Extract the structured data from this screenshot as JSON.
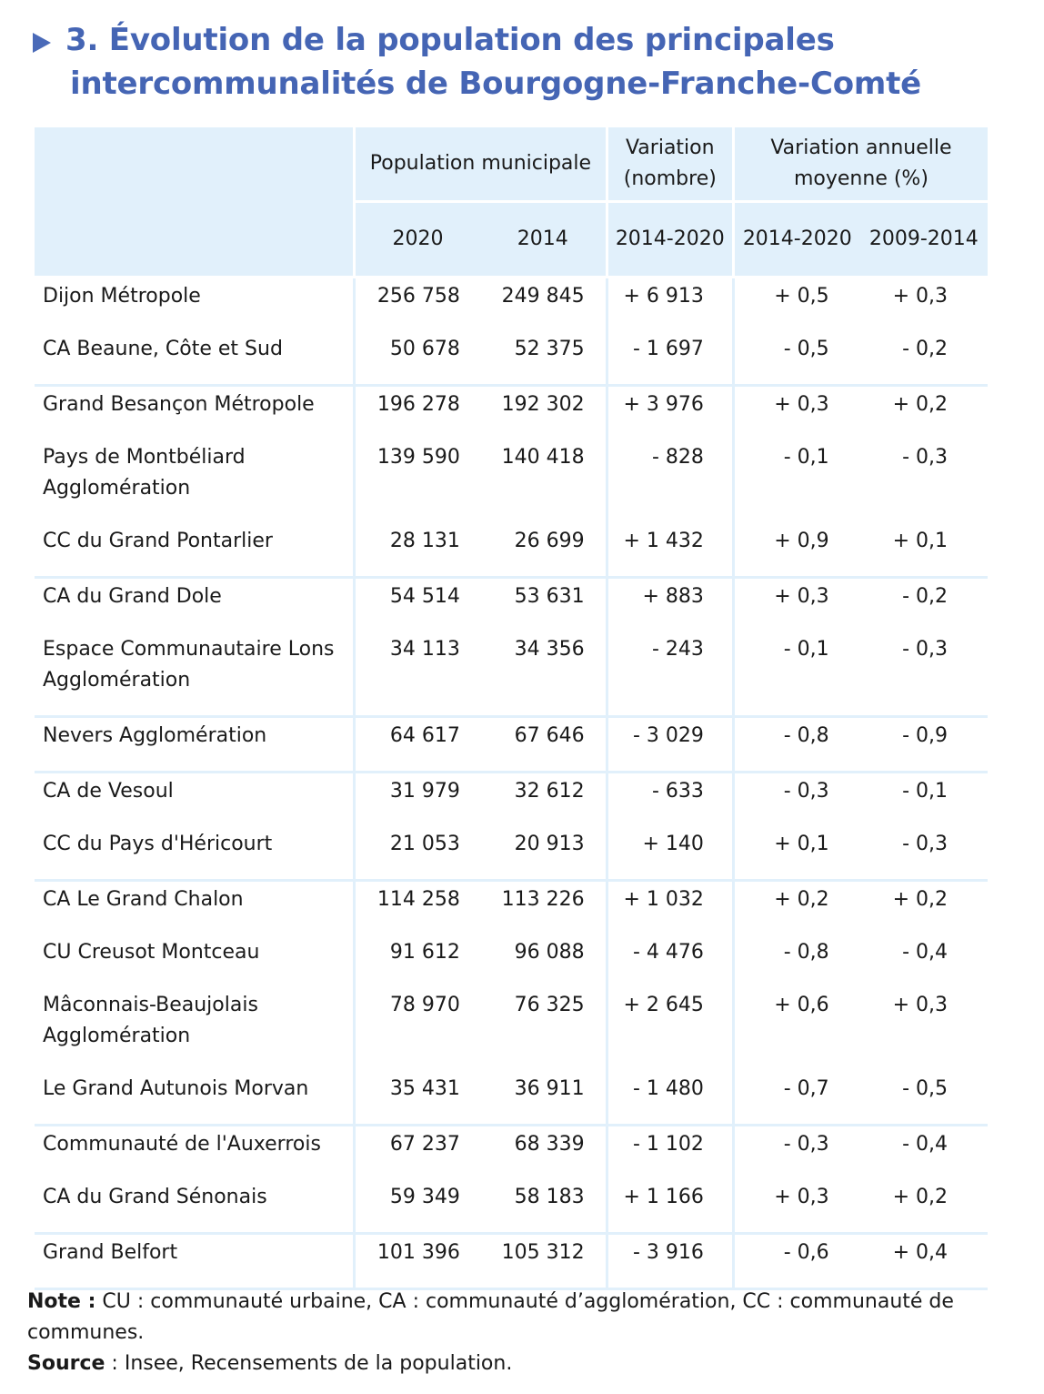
{
  "title": {
    "line1": "3. Évolution de la population des principales",
    "line2": "intercommunalités de Bourgogne-Franche-Comté"
  },
  "table": {
    "header": {
      "population": "Population municipale",
      "variation_nombre": "Variation (nombre)",
      "variation_annuelle": "Variation annuelle moyenne (%)",
      "year_2020": "2020",
      "year_2014": "2014",
      "period_var": "2014-2020",
      "period_r1": "2014-2020",
      "period_r2": "2009-2014"
    },
    "rows": [
      {
        "name": "Dijon Métropole",
        "p2020": "256 758",
        "p2014": "249 845",
        "var": "+ 6 913",
        "r1": "+ 0,5",
        "r2": "+ 0,3"
      },
      {
        "name": "CA Beaune, Côte et Sud",
        "p2020": "50 678",
        "p2014": "52 375",
        "var": "- 1 697",
        "r1": "- 0,5",
        "r2": "- 0,2"
      },
      {
        "name": "Grand Besançon Métropole",
        "p2020": "196 278",
        "p2014": "192 302",
        "var": "+ 3 976",
        "r1": "+ 0,3",
        "r2": "+ 0,2"
      },
      {
        "name": "Pays de Montbéliard Agglomération",
        "p2020": "139 590",
        "p2014": "140 418",
        "var": "- 828",
        "r1": "- 0,1",
        "r2": "- 0,3"
      },
      {
        "name": "CC du Grand Pontarlier",
        "p2020": "28 131",
        "p2014": "26 699",
        "var": "+ 1 432",
        "r1": "+ 0,9",
        "r2": "+ 0,1"
      },
      {
        "name": "CA du Grand Dole",
        "p2020": "54 514",
        "p2014": "53 631",
        "var": "+ 883",
        "r1": "+ 0,3",
        "r2": "- 0,2"
      },
      {
        "name": "Espace Communautaire Lons Agglomération",
        "p2020": "34 113",
        "p2014": "34 356",
        "var": "- 243",
        "r1": "- 0,1",
        "r2": "- 0,3"
      },
      {
        "name": "Nevers Agglomération",
        "p2020": "64 617",
        "p2014": "67 646",
        "var": "- 3 029",
        "r1": "- 0,8",
        "r2": "- 0,9"
      },
      {
        "name": "CA de Vesoul",
        "p2020": "31 979",
        "p2014": "32 612",
        "var": "- 633",
        "r1": "- 0,3",
        "r2": "- 0,1"
      },
      {
        "name": "CC du Pays d'Héricourt",
        "p2020": "21 053",
        "p2014": "20 913",
        "var": "+ 140",
        "r1": "+ 0,1",
        "r2": "- 0,3"
      },
      {
        "name": "CA Le Grand Chalon",
        "p2020": "114 258",
        "p2014": "113 226",
        "var": "+ 1 032",
        "r1": "+ 0,2",
        "r2": "+ 0,2"
      },
      {
        "name": "CU Creusot Montceau",
        "p2020": "91 612",
        "p2014": "96 088",
        "var": "- 4 476",
        "r1": "- 0,8",
        "r2": "- 0,4"
      },
      {
        "name": "Mâconnais-Beaujolais Agglomération",
        "p2020": "78 970",
        "p2014": "76 325",
        "var": "+ 2 645",
        "r1": "+ 0,6",
        "r2": "+ 0,3"
      },
      {
        "name": "Le Grand Autunois Morvan",
        "p2020": "35 431",
        "p2014": "36 911",
        "var": "- 1 480",
        "r1": "- 0,7",
        "r2": "- 0,5"
      },
      {
        "name": "Communauté de l'Auxerrois",
        "p2020": "67 237",
        "p2014": "68 339",
        "var": "- 1 102",
        "r1": "- 0,3",
        "r2": "- 0,4"
      },
      {
        "name": "CA du Grand Sénonais",
        "p2020": "59 349",
        "p2014": "58 183",
        "var": "+ 1 166",
        "r1": "+ 0,3",
        "r2": "+ 0,2"
      },
      {
        "name": "Grand Belfort",
        "p2020": "101 396",
        "p2014": "105 312",
        "var": "- 3 916",
        "r1": "- 0,6",
        "r2": "+ 0,4"
      }
    ]
  },
  "footer": {
    "note_label": "Note :",
    "note_text": " CU : communauté urbaine, CA : communauté d’agglomération, CC : communauté de communes.",
    "source_label": "Source",
    "source_text": " : Insee, Recensements de la population."
  }
}
